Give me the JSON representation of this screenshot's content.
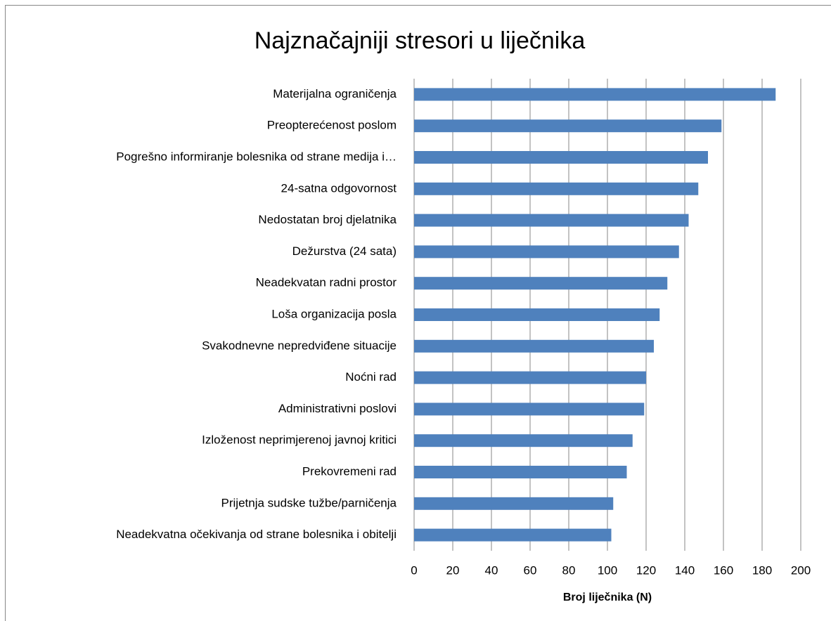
{
  "chart_data": {
    "type": "bar",
    "orientation": "horizontal",
    "title": "Najznačajniji stresori u liječnika",
    "x_label": "Broj liječnika (N)",
    "categories": [
      "Materijalna ograničenja",
      "Preopterećenost poslom",
      "Pogrešno informiranje bolesnika od strane medija i…",
      "24-satna odgovornost",
      "Nedostatan broj djelatnika",
      "Dežurstva (24 sata)",
      "Neadekvatan radni prostor",
      "Loša organizacija posla",
      "Svakodnevne nepredviđene situacije",
      "Noćni rad",
      "Administrativni poslovi",
      "Izloženost neprimjerenoj javnoj kritici",
      "Prekovremeni rad",
      "Prijetnja sudske tužbe/parničenja",
      "Neadekvatna očekivanja od strane bolesnika i obitelji"
    ],
    "values": [
      187,
      159,
      152,
      147,
      142,
      137,
      131,
      127,
      124,
      120,
      119,
      113,
      110,
      103,
      102
    ],
    "color": "#4f81bd",
    "xlim": [
      0,
      200
    ],
    "xticks": [
      0,
      20,
      40,
      60,
      80,
      100,
      120,
      140,
      160,
      180,
      200
    ],
    "grid": true
  }
}
